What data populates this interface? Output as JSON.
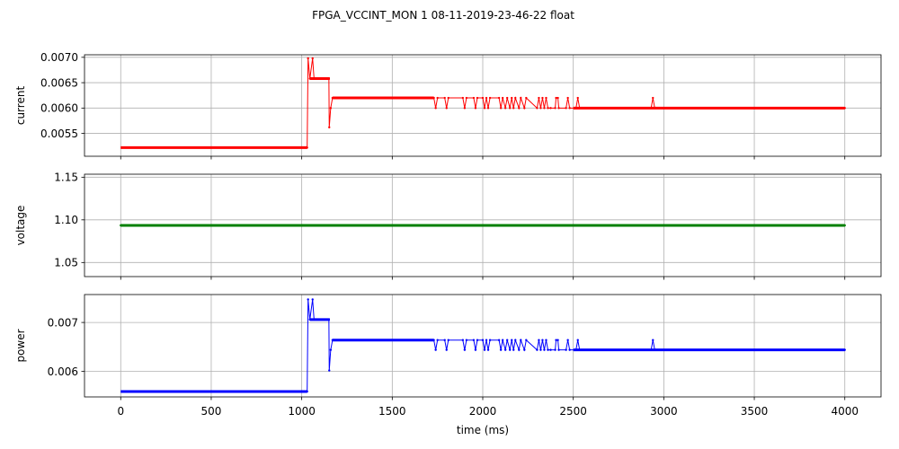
{
  "figure": {
    "suptitle": "FPGA_VCCINT_MON   1   08-11-2019-23-46-22   float",
    "xlabel": "time (ms)"
  },
  "chart_data": [
    {
      "type": "line",
      "ylabel": "current",
      "color": "#ff0000",
      "grid": true,
      "xlim": [
        -200,
        4200
      ],
      "ylim": [
        0.00505,
        0.00705
      ],
      "yticks": [
        0.0055,
        0.006,
        0.0065,
        0.007
      ],
      "ytick_labels": [
        "0.0055",
        "0.0060",
        "0.0065",
        "0.0070"
      ],
      "segments": [
        {
          "x0": 0,
          "x1": 1030,
          "y": 0.00522
        },
        {
          "x0": 1045,
          "x1": 1155,
          "y": 0.00658
        },
        {
          "x0": 1170,
          "x1": 1730,
          "y": 0.0062
        },
        {
          "x0": 2500,
          "x1": 4000,
          "y": 0.006
        }
      ],
      "points": [
        [
          1030,
          0.00522
        ],
        [
          1035,
          0.00698
        ],
        [
          1045,
          0.00658
        ],
        [
          1060,
          0.00698
        ],
        [
          1068,
          0.00658
        ],
        [
          1150,
          0.00658
        ],
        [
          1152,
          0.00562
        ],
        [
          1160,
          0.006
        ],
        [
          1170,
          0.0062
        ],
        [
          1730,
          0.0062
        ],
        [
          1740,
          0.006
        ],
        [
          1750,
          0.0062
        ],
        [
          1790,
          0.0062
        ],
        [
          1800,
          0.006
        ],
        [
          1810,
          0.0062
        ],
        [
          1890,
          0.0062
        ],
        [
          1900,
          0.006
        ],
        [
          1910,
          0.0062
        ],
        [
          1950,
          0.0062
        ],
        [
          1960,
          0.006
        ],
        [
          1970,
          0.0062
        ],
        [
          2000,
          0.0062
        ],
        [
          2010,
          0.006
        ],
        [
          2020,
          0.0062
        ],
        [
          2030,
          0.006
        ],
        [
          2040,
          0.0062
        ],
        [
          2090,
          0.0062
        ],
        [
          2100,
          0.006
        ],
        [
          2110,
          0.0062
        ],
        [
          2125,
          0.006
        ],
        [
          2135,
          0.0062
        ],
        [
          2150,
          0.006
        ],
        [
          2160,
          0.0062
        ],
        [
          2170,
          0.006
        ],
        [
          2180,
          0.0062
        ],
        [
          2200,
          0.006
        ],
        [
          2210,
          0.0062
        ],
        [
          2230,
          0.006
        ],
        [
          2240,
          0.0062
        ],
        [
          2300,
          0.006
        ],
        [
          2310,
          0.0062
        ],
        [
          2320,
          0.006
        ],
        [
          2330,
          0.0062
        ],
        [
          2340,
          0.006
        ],
        [
          2350,
          0.0062
        ],
        [
          2360,
          0.006
        ],
        [
          2375,
          0.006
        ],
        [
          2400,
          0.006
        ],
        [
          2405,
          0.0062
        ],
        [
          2415,
          0.0062
        ],
        [
          2420,
          0.006
        ],
        [
          2460,
          0.006
        ],
        [
          2470,
          0.0062
        ],
        [
          2480,
          0.006
        ],
        [
          2515,
          0.006
        ],
        [
          2525,
          0.0062
        ],
        [
          2535,
          0.006
        ],
        [
          2930,
          0.006
        ],
        [
          2940,
          0.0062
        ],
        [
          2950,
          0.006
        ],
        [
          4000,
          0.006
        ]
      ]
    },
    {
      "type": "line",
      "ylabel": "voltage",
      "color": "#008000",
      "grid": true,
      "xlim": [
        -200,
        4200
      ],
      "ylim": [
        1.0335,
        1.1535
      ],
      "yticks": [
        1.05,
        1.1,
        1.15
      ],
      "ytick_labels": [
        "1.05",
        "1.10",
        "1.15"
      ],
      "segments": [
        {
          "x0": 0,
          "x1": 4000,
          "y": 1.0935
        }
      ],
      "points": [
        [
          0,
          1.0935
        ],
        [
          4000,
          1.0935
        ]
      ]
    },
    {
      "type": "line",
      "ylabel": "power",
      "color": "#0000ff",
      "grid": true,
      "xlim": [
        -200,
        4200
      ],
      "ylim": [
        0.00548,
        0.00757
      ],
      "yticks": [
        0.006,
        0.007
      ],
      "ytick_labels": [
        "0.006",
        "0.007"
      ],
      "xticks": [
        0,
        500,
        1000,
        1500,
        2000,
        2500,
        3000,
        3500,
        4000
      ],
      "xtick_labels": [
        "0",
        "500",
        "1000",
        "1500",
        "2000",
        "2500",
        "3000",
        "3500",
        "4000"
      ],
      "segments": [
        {
          "x0": 0,
          "x1": 1030,
          "y": 0.00559
        },
        {
          "x0": 1045,
          "x1": 1155,
          "y": 0.00706
        },
        {
          "x0": 1170,
          "x1": 1730,
          "y": 0.00664
        },
        {
          "x0": 2500,
          "x1": 4000,
          "y": 0.00644
        }
      ],
      "points": [
        [
          1030,
          0.00559
        ],
        [
          1035,
          0.00747
        ],
        [
          1045,
          0.00706
        ],
        [
          1060,
          0.00747
        ],
        [
          1068,
          0.00706
        ],
        [
          1150,
          0.00706
        ],
        [
          1152,
          0.00602
        ],
        [
          1160,
          0.00644
        ],
        [
          1170,
          0.00664
        ],
        [
          1730,
          0.00664
        ],
        [
          1740,
          0.00644
        ],
        [
          1750,
          0.00664
        ],
        [
          1790,
          0.00664
        ],
        [
          1800,
          0.00644
        ],
        [
          1810,
          0.00664
        ],
        [
          1890,
          0.00664
        ],
        [
          1900,
          0.00644
        ],
        [
          1910,
          0.00664
        ],
        [
          1950,
          0.00664
        ],
        [
          1960,
          0.00644
        ],
        [
          1970,
          0.00664
        ],
        [
          2000,
          0.00664
        ],
        [
          2010,
          0.00644
        ],
        [
          2020,
          0.00664
        ],
        [
          2030,
          0.00644
        ],
        [
          2040,
          0.00664
        ],
        [
          2090,
          0.00664
        ],
        [
          2100,
          0.00644
        ],
        [
          2110,
          0.00664
        ],
        [
          2125,
          0.00644
        ],
        [
          2135,
          0.00664
        ],
        [
          2150,
          0.00644
        ],
        [
          2160,
          0.00664
        ],
        [
          2170,
          0.00644
        ],
        [
          2180,
          0.00664
        ],
        [
          2200,
          0.00644
        ],
        [
          2210,
          0.00664
        ],
        [
          2230,
          0.00644
        ],
        [
          2240,
          0.00664
        ],
        [
          2300,
          0.00644
        ],
        [
          2310,
          0.00664
        ],
        [
          2320,
          0.00644
        ],
        [
          2330,
          0.00664
        ],
        [
          2340,
          0.00644
        ],
        [
          2350,
          0.00664
        ],
        [
          2360,
          0.00644
        ],
        [
          2375,
          0.00644
        ],
        [
          2400,
          0.00644
        ],
        [
          2405,
          0.00664
        ],
        [
          2415,
          0.00664
        ],
        [
          2420,
          0.00644
        ],
        [
          2460,
          0.00644
        ],
        [
          2470,
          0.00664
        ],
        [
          2480,
          0.00644
        ],
        [
          2515,
          0.00644
        ],
        [
          2525,
          0.00664
        ],
        [
          2535,
          0.00644
        ],
        [
          2930,
          0.00644
        ],
        [
          2940,
          0.00664
        ],
        [
          2950,
          0.00644
        ],
        [
          4000,
          0.00644
        ]
      ]
    }
  ]
}
